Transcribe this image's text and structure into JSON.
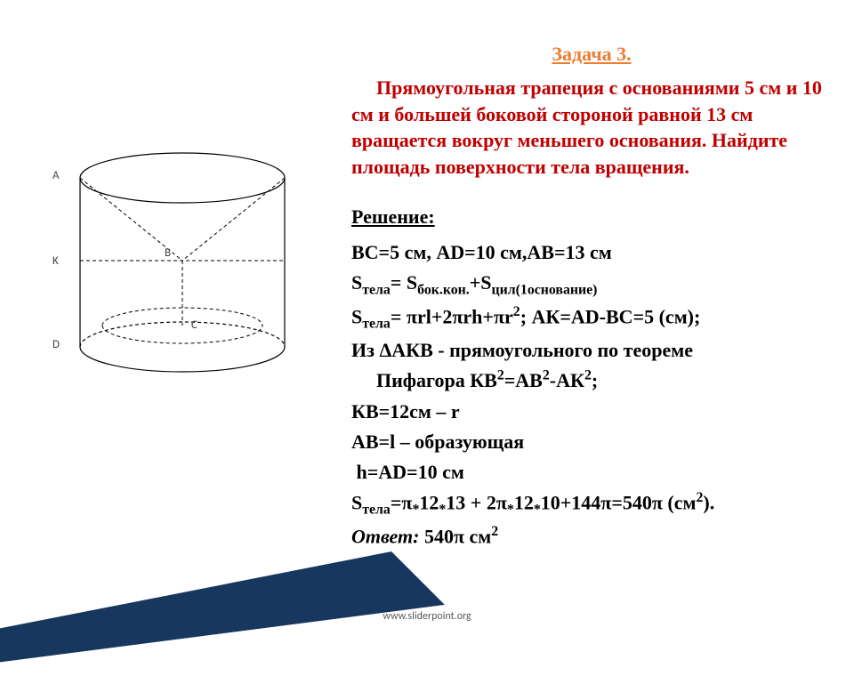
{
  "task": {
    "title": "Задача 3.",
    "title_color": "#ed7d31",
    "problem": "Прямоугольная трапеция с основаниями 5 см и 10 см и большей боковой стороной равной 13 см вращается  вокруг меньшего основания. Найдите площадь поверхности тела вращения.",
    "problem_color": "#c00000"
  },
  "solution": {
    "label": "Решение:",
    "lines_html": [
      "BC=5 см, AD=10 см,AB=13 см",
      "S<span class='sub'>тела</span>= S<span class='sub'>бок.кон.</span>+S<span class='sub'>цил(1основание)</span>",
      "S<span class='sub'>тела</span>= πrl+2πrh+πr<span class='sup'>2</span>; АК=AD-BC=5 (см);",
      "Из ΔАКВ - прямоугольного по теореме",
      "<span class='indent'>Пифагора КВ<span class='sup'>2</span>=АВ<span class='sup'>2</span>-АК<span class='sup'>2</span>;</span>",
      "КВ=12см – r",
      "AB=l – образующая",
      "&nbsp;h=AD=10 см",
      "S<span class='sub'>тела</span>=π<span class='sub'>*</span>12<span class='sub'>*</span>13 + 2π<span class='sub'>*</span>12<span class='sub'>*</span>10+144π=540π (см<span class='sup'>2</span>).",
      "<i>Ответ:</i> 540π см<span class='sup'>2</span>"
    ],
    "text_color": "#000000"
  },
  "diagram": {
    "labels": {
      "A": "A",
      "K": "K",
      "D": "D",
      "B": "B",
      "C": "C"
    },
    "stroke_color": "#000000",
    "dash": "4,3",
    "label_color": "#404040"
  },
  "wedge": {
    "top_color": "#17375e",
    "bottom_color": "#ffffff",
    "stroke": "#17375e"
  },
  "footer": "www.sliderpoint.org"
}
